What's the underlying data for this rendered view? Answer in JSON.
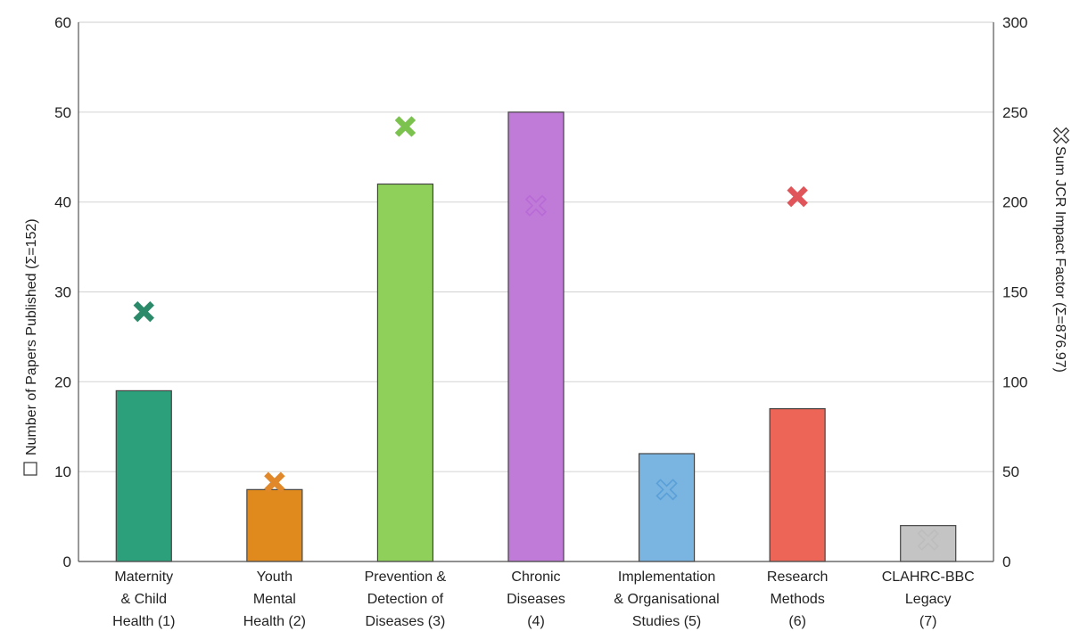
{
  "chart_data": {
    "type": "bar",
    "categories": [
      [
        "Maternity",
        "& Child",
        "Health (1)"
      ],
      [
        "Youth",
        "Mental",
        "Health (2)"
      ],
      [
        "Prevention &",
        "Detection of",
        "Diseases (3)"
      ],
      [
        "Chronic",
        "Diseases",
        "(4)"
      ],
      [
        "Implementation",
        "& Organisational",
        "Studies (5)"
      ],
      [
        "Research",
        "Methods",
        "(6)"
      ],
      [
        "CLAHRC-BBC",
        "Legacy",
        "(7)"
      ]
    ],
    "series": [
      {
        "name": "Number of Papers Published (Σ=152)",
        "axis": "left",
        "values": [
          19,
          8,
          42,
          50,
          12,
          17,
          4
        ]
      },
      {
        "name": "Sum JCR Impact Factor (Σ=876.97)",
        "axis": "right",
        "values": [
          139,
          44,
          242,
          198,
          40,
          203,
          12
        ]
      }
    ],
    "colors": [
      "#2ca07a",
      "#e08a1e",
      "#8fd05a",
      "#c07ad8",
      "#7ab4e0",
      "#ec6556",
      "#c4c4c4"
    ],
    "marker_colors": [
      "#2a8a6a",
      "#e0882a",
      "#7cc24e",
      "#b86ad6",
      "#5aa0d8",
      "#e0555a",
      "#bdbdbd"
    ],
    "marker_filled": [
      true,
      true,
      true,
      false,
      false,
      true,
      false
    ],
    "y_left": {
      "label": "Number of Papers Published (Σ=152)",
      "lim": [
        0,
        60
      ],
      "ticks": [
        "0",
        "10",
        "20",
        "30",
        "40",
        "50",
        "60"
      ]
    },
    "y_right": {
      "label": "Sum JCR Impact Factor (Σ=876.97)",
      "lim": [
        0,
        300
      ],
      "ticks": [
        "0",
        "50",
        "100",
        "150",
        "200",
        "250",
        "300"
      ]
    },
    "grid": true,
    "legend": "axis-titles"
  }
}
